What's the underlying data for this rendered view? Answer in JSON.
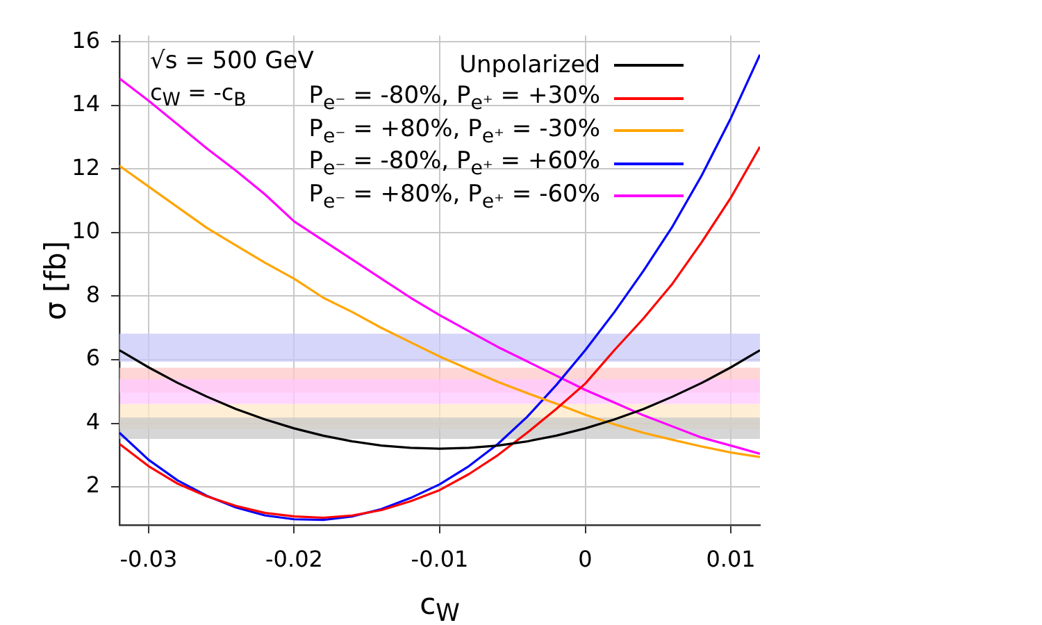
{
  "chart_data": {
    "type": "line",
    "xlabel": "c$_{W}$",
    "ylabel": "σ [fb]",
    "annotations": [
      "√s = 500 GeV",
      "c$_{W}$ = -c$_{B}$"
    ],
    "x": [
      -0.032,
      -0.03,
      -0.028,
      -0.026,
      -0.024,
      -0.022,
      -0.02,
      -0.018,
      -0.016,
      -0.014,
      -0.012,
      -0.01,
      -0.008,
      -0.006,
      -0.004,
      -0.002,
      0,
      0.002,
      0.004,
      0.006,
      0.008,
      0.01,
      0.012
    ],
    "series": [
      {
        "name": "Unpolarized",
        "color": "#000000",
        "values": [
          6.3,
          5.76,
          5.27,
          4.84,
          4.45,
          4.12,
          3.84,
          3.61,
          3.43,
          3.3,
          3.23,
          3.2,
          3.23,
          3.3,
          3.43,
          3.61,
          3.84,
          4.12,
          4.45,
          4.84,
          5.27,
          5.76,
          6.3
        ]
      },
      {
        "name": "P$_{e⁻}$ = -80%, P$_{e⁺}$ = +30%",
        "color": "#ff0000",
        "values": [
          3.35,
          2.65,
          2.1,
          1.7,
          1.4,
          1.18,
          1.07,
          1.03,
          1.1,
          1.27,
          1.55,
          1.9,
          2.4,
          3.0,
          3.7,
          4.45,
          5.25,
          6.3,
          7.3,
          8.4,
          9.7,
          11.1,
          12.7
        ]
      },
      {
        "name": "P$_{e⁻}$ = +80%, P$_{e⁺}$ = -30%",
        "color": "#ffa500",
        "values": [
          12.1,
          11.45,
          10.8,
          10.15,
          9.6,
          9.05,
          8.55,
          7.95,
          7.5,
          7.0,
          6.55,
          6.1,
          5.7,
          5.3,
          4.95,
          4.62,
          4.27,
          3.97,
          3.7,
          3.48,
          3.27,
          3.08,
          2.94
        ]
      },
      {
        "name": "P$_{e⁻}$ = -80%, P$_{e⁺}$ = +60%",
        "color": "#0000ff",
        "values": [
          3.7,
          2.85,
          2.2,
          1.72,
          1.35,
          1.1,
          0.98,
          0.96,
          1.07,
          1.3,
          1.65,
          2.08,
          2.65,
          3.35,
          4.2,
          5.2,
          6.3,
          7.5,
          8.8,
          10.2,
          11.8,
          13.6,
          15.6
        ]
      },
      {
        "name": "P$_{e⁻}$ = +80%, P$_{e⁺}$ = -60%",
        "color": "#ff00ff",
        "values": [
          14.85,
          14.15,
          13.4,
          12.65,
          11.95,
          11.2,
          10.35,
          9.75,
          9.15,
          8.55,
          7.95,
          7.4,
          6.9,
          6.4,
          5.95,
          5.5,
          5.05,
          4.65,
          4.25,
          3.9,
          3.55,
          3.3,
          3.04
        ]
      }
    ],
    "bands": [
      {
        "axis": "y",
        "from": 5.94,
        "to": 6.82,
        "color": "#c8c8f8"
      },
      {
        "axis": "y",
        "from": 4.96,
        "to": 5.75,
        "color": "#ffc8c8"
      },
      {
        "axis": "y",
        "from": 4.61,
        "to": 5.39,
        "color": "#ffc8ff"
      },
      {
        "axis": "y",
        "from": 3.82,
        "to": 4.61,
        "color": "#ffe8c8"
      },
      {
        "axis": "y",
        "from": 3.51,
        "to": 4.18,
        "color": "#c8c8c8"
      }
    ],
    "xlim": [
      -0.032,
      0.012
    ],
    "xticks": [
      -0.03,
      -0.02,
      -0.01,
      0,
      0.01
    ],
    "ylim": [
      0.8,
      16.2
    ],
    "yticks": [
      2,
      4,
      6,
      8,
      10,
      12,
      14,
      16
    ],
    "grid": true,
    "legend": "top right",
    "marker": "none"
  }
}
